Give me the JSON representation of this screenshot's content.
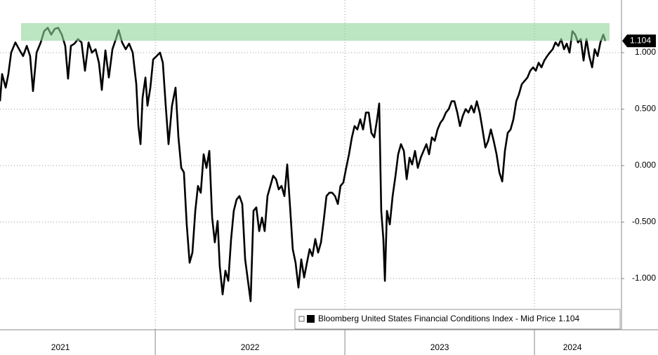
{
  "chart_data": {
    "type": "line",
    "x": [
      2021.181,
      2021.192,
      2021.211,
      2021.225,
      2021.24,
      2021.262,
      2021.285,
      2021.303,
      2021.322,
      2021.34,
      2021.355,
      2021.374,
      2021.396,
      2021.414,
      2021.433,
      2021.451,
      2021.47,
      2021.488,
      2021.507,
      2021.525,
      2021.54,
      2021.555,
      2021.574,
      2021.592,
      2021.611,
      2021.629,
      2021.648,
      2021.666,
      2021.685,
      2021.703,
      2021.718,
      2021.737,
      2021.755,
      2021.774,
      2021.792,
      2021.807,
      2021.825,
      2021.844,
      2021.862,
      2021.881,
      2021.9,
      2021.911,
      2021.922,
      2021.933,
      2021.948,
      2021.959,
      2021.974,
      2021.989,
      2022.007,
      2022.025,
      2022.04,
      2022.055,
      2022.07,
      2022.088,
      2022.107,
      2022.122,
      2022.137,
      2022.151,
      2022.166,
      2022.181,
      2022.196,
      2022.211,
      2022.225,
      2022.24,
      2022.255,
      2022.27,
      2022.285,
      2022.3,
      2022.314,
      2022.329,
      2022.34,
      2022.355,
      2022.37,
      2022.385,
      2022.4,
      2022.414,
      2022.429,
      2022.444,
      2022.459,
      2022.474,
      2022.489,
      2022.503,
      2022.518,
      2022.533,
      2022.548,
      2022.563,
      2022.577,
      2022.592,
      2022.607,
      2022.622,
      2022.637,
      2022.651,
      2022.666,
      2022.681,
      2022.696,
      2022.711,
      2022.725,
      2022.74,
      2022.755,
      2022.77,
      2022.785,
      2022.8,
      2022.814,
      2022.829,
      2022.844,
      2022.859,
      2022.874,
      2022.888,
      2022.903,
      2022.918,
      2022.933,
      2022.948,
      2022.963,
      2022.977,
      2022.992,
      2023.007,
      2023.022,
      2023.037,
      2023.051,
      2023.066,
      2023.081,
      2023.096,
      2023.111,
      2023.126,
      2023.14,
      2023.155,
      2023.17,
      2023.181,
      2023.192,
      2023.203,
      2023.211,
      2023.222,
      2023.237,
      2023.252,
      2023.267,
      2023.281,
      2023.296,
      2023.311,
      2023.326,
      2023.341,
      2023.355,
      2023.37,
      2023.385,
      2023.4,
      2023.415,
      2023.43,
      2023.444,
      2023.459,
      2023.474,
      2023.489,
      2023.504,
      2023.518,
      2023.533,
      2023.548,
      2023.563,
      2023.578,
      2023.593,
      2023.607,
      2023.622,
      2023.637,
      2023.652,
      2023.667,
      2023.681,
      2023.696,
      2023.711,
      2023.726,
      2023.741,
      2023.756,
      2023.77,
      2023.785,
      2023.8,
      2023.815,
      2023.83,
      2023.844,
      2023.859,
      2023.874,
      2023.889,
      2023.904,
      2023.918,
      2023.933,
      2023.948,
      2023.963,
      2023.978,
      2023.993,
      2024.007,
      2024.022,
      2024.037,
      2024.052,
      2024.067,
      2024.081,
      2024.096,
      2024.111,
      2024.126,
      2024.141,
      2024.156,
      2024.17,
      2024.185,
      2024.2,
      2024.215,
      2024.23,
      2024.244,
      2024.259,
      2024.274,
      2024.289,
      2024.304,
      2024.318,
      2024.333,
      2024.348,
      2024.363,
      2024.374
    ],
    "series": [
      {
        "name": "Bloomberg United States Financial Conditions Index - Mid Price",
        "color": "#000000",
        "values": [
          0.57,
          0.81,
          0.69,
          0.81,
          1.0,
          1.09,
          1.02,
          0.97,
          1.06,
          0.97,
          0.66,
          1.0,
          1.09,
          1.19,
          1.22,
          1.16,
          1.21,
          1.22,
          1.16,
          1.06,
          0.77,
          1.06,
          1.08,
          1.12,
          1.09,
          0.84,
          1.09,
          1.0,
          1.03,
          0.91,
          0.67,
          1.02,
          0.78,
          1.03,
          1.12,
          1.2,
          1.09,
          1.03,
          1.08,
          1.0,
          0.72,
          0.35,
          0.19,
          0.6,
          0.78,
          0.53,
          0.69,
          0.94,
          0.97,
          1.0,
          0.91,
          0.53,
          0.19,
          0.53,
          0.69,
          0.25,
          -0.02,
          -0.06,
          -0.52,
          -0.86,
          -0.77,
          -0.4,
          -0.18,
          -0.24,
          0.1,
          -0.02,
          0.13,
          -0.46,
          -0.68,
          -0.49,
          -0.89,
          -1.14,
          -0.93,
          -1.02,
          -0.65,
          -0.4,
          -0.3,
          -0.27,
          -0.34,
          -0.83,
          -1.02,
          -1.2,
          -0.4,
          -0.37,
          -0.58,
          -0.46,
          -0.58,
          -0.27,
          -0.18,
          -0.09,
          -0.12,
          -0.21,
          -0.18,
          -0.27,
          0.01,
          -0.37,
          -0.74,
          -0.86,
          -1.08,
          -0.83,
          -0.99,
          -0.86,
          -0.74,
          -0.8,
          -0.65,
          -0.77,
          -0.68,
          -0.49,
          -0.27,
          -0.24,
          -0.24,
          -0.27,
          -0.34,
          -0.18,
          -0.15,
          -0.02,
          0.1,
          0.25,
          0.35,
          0.32,
          0.41,
          0.32,
          0.47,
          0.47,
          0.29,
          0.25,
          0.41,
          0.55,
          -0.4,
          -0.65,
          -1.02,
          -0.4,
          -0.52,
          -0.27,
          -0.09,
          0.1,
          0.19,
          0.13,
          -0.12,
          0.07,
          0.01,
          0.13,
          -0.02,
          0.07,
          0.13,
          0.19,
          0.1,
          0.25,
          0.22,
          0.32,
          0.38,
          0.41,
          0.47,
          0.5,
          0.57,
          0.57,
          0.47,
          0.35,
          0.44,
          0.5,
          0.47,
          0.53,
          0.47,
          0.57,
          0.47,
          0.32,
          0.16,
          0.22,
          0.32,
          0.22,
          0.1,
          -0.06,
          -0.14,
          0.13,
          0.29,
          0.32,
          0.41,
          0.57,
          0.63,
          0.72,
          0.75,
          0.78,
          0.84,
          0.87,
          0.84,
          0.91,
          0.87,
          0.93,
          0.97,
          1.0,
          1.03,
          1.09,
          1.06,
          1.12,
          1.03,
          1.08,
          1.0,
          1.19,
          1.16,
          1.09,
          1.12,
          0.93,
          1.12,
          0.97,
          0.87,
          1.03,
          0.97,
          1.09,
          1.16,
          1.104
        ]
      }
    ],
    "last_value": 1.104,
    "xlim": [
      2021.181,
      2024.459
    ],
    "ylim": [
      -1.453,
      1.466
    ],
    "yticks": [
      {
        "value": -1,
        "label": "-1.000"
      },
      {
        "value": -0.5,
        "label": "-0.500"
      },
      {
        "value": 0,
        "label": "0.000"
      },
      {
        "value": 0.5,
        "label": "0.500"
      },
      {
        "value": 1,
        "label": "1.000"
      }
    ],
    "xticks": [
      {
        "value": 2021.5,
        "label": "2021"
      },
      {
        "value": 2022.5,
        "label": "2022"
      },
      {
        "value": 2023.5,
        "label": "2023"
      },
      {
        "value": 2024.2,
        "label": "2024"
      }
    ],
    "xdividers": [
      2022,
      2023,
      2024
    ],
    "highlight_band": {
      "xlim": [
        2021.292,
        2024.396
      ],
      "ylim": [
        1.105,
        1.261
      ],
      "color": "#8fd49a"
    },
    "grid": true
  }
}
